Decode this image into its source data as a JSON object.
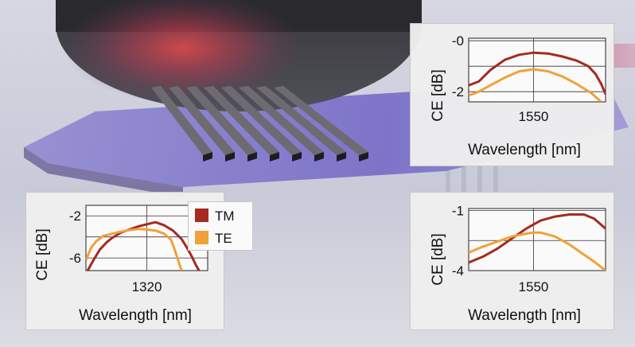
{
  "colors": {
    "TM": "#a52a1f",
    "TE": "#f0a13a"
  },
  "legend": [
    {
      "label": "TM",
      "color": "#a52a1f"
    },
    {
      "label": "TE",
      "color": "#f0a13a"
    }
  ],
  "chart_data": [
    {
      "type": "line",
      "ylabel": "CE [dB]",
      "xlabel": "Wavelength [nm]",
      "xlim": [
        1505,
        1600
      ],
      "ylim": [
        -2.4,
        0.1
      ],
      "xticks": [
        1550
      ],
      "yticks": [
        0,
        -2
      ],
      "ytick_labels": [
        "-0",
        "-2"
      ],
      "grid": true,
      "series": [
        {
          "name": "TM",
          "x": [
            1505,
            1512,
            1520,
            1530,
            1540,
            1550,
            1560,
            1570,
            1580,
            1588,
            1593,
            1597,
            1600
          ],
          "y": [
            -1.75,
            -1.6,
            -1.15,
            -0.75,
            -0.55,
            -0.47,
            -0.5,
            -0.62,
            -0.78,
            -1.0,
            -1.3,
            -1.7,
            -2.1
          ]
        },
        {
          "name": "TE",
          "x": [
            1505,
            1512,
            1520,
            1530,
            1540,
            1550,
            1560,
            1570,
            1580,
            1590,
            1597
          ],
          "y": [
            -2.15,
            -2.0,
            -1.75,
            -1.45,
            -1.2,
            -1.12,
            -1.2,
            -1.4,
            -1.7,
            -2.05,
            -2.4
          ]
        }
      ]
    },
    {
      "type": "line",
      "ylabel": "CE [dB]",
      "xlabel": "Wavelength [nm]",
      "xlim": [
        1285,
        1355
      ],
      "ylim": [
        -7.2,
        -1.0
      ],
      "xticks": [
        1320
      ],
      "yticks": [
        -2,
        -6
      ],
      "grid": true,
      "series": [
        {
          "name": "TM",
          "x": [
            1286,
            1289,
            1293,
            1297,
            1300,
            1305,
            1310,
            1315,
            1320,
            1325,
            1330,
            1335,
            1340,
            1343,
            1346,
            1348,
            1350
          ],
          "y": [
            -7.2,
            -6.3,
            -5.2,
            -4.5,
            -4.1,
            -3.6,
            -3.3,
            -3.0,
            -2.8,
            -2.6,
            -2.9,
            -3.4,
            -4.2,
            -5.0,
            -5.9,
            -6.6,
            -7.2
          ]
        },
        {
          "name": "TE",
          "x": [
            1285,
            1288,
            1291,
            1295,
            1300,
            1305,
            1310,
            1315,
            1320,
            1325,
            1330,
            1334,
            1336,
            1338,
            1340
          ],
          "y": [
            -6.2,
            -5.0,
            -4.4,
            -3.9,
            -3.7,
            -3.5,
            -3.35,
            -3.25,
            -3.3,
            -3.4,
            -3.7,
            -4.3,
            -5.2,
            -6.2,
            -7.2
          ]
        }
      ]
    },
    {
      "type": "line",
      "ylabel": "CE [dB]",
      "xlabel": "Wavelength [nm]",
      "xlim": [
        1505,
        1600
      ],
      "ylim": [
        -4.0,
        -0.9
      ],
      "xticks": [
        1550
      ],
      "yticks": [
        -1,
        -4
      ],
      "grid": true,
      "series": [
        {
          "name": "TM",
          "x": [
            1505,
            1515,
            1525,
            1535,
            1545,
            1550,
            1555,
            1565,
            1575,
            1585,
            1592,
            1600
          ],
          "y": [
            -3.6,
            -3.3,
            -2.9,
            -2.4,
            -1.9,
            -1.7,
            -1.5,
            -1.3,
            -1.2,
            -1.2,
            -1.4,
            -1.9
          ]
        },
        {
          "name": "TE",
          "x": [
            1505,
            1515,
            1525,
            1535,
            1545,
            1550,
            1555,
            1565,
            1575,
            1585,
            1593,
            1600
          ],
          "y": [
            -3.1,
            -2.8,
            -2.55,
            -2.3,
            -2.15,
            -2.1,
            -2.1,
            -2.3,
            -2.7,
            -3.2,
            -3.6,
            -4.0
          ]
        }
      ]
    }
  ]
}
